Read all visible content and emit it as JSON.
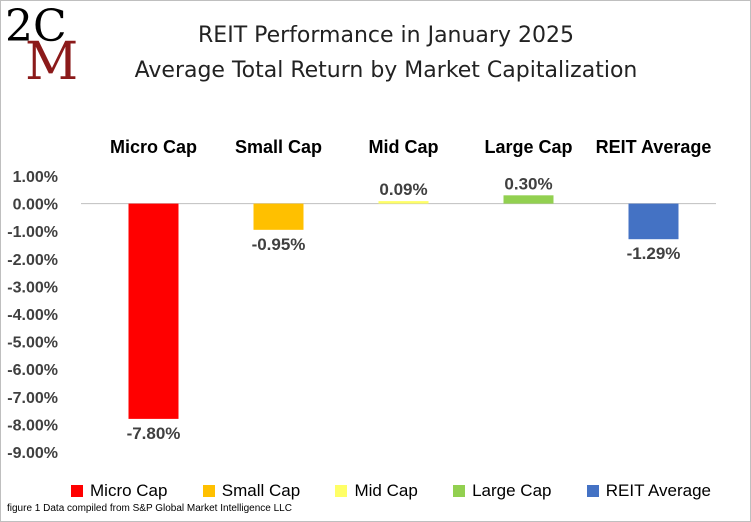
{
  "logo": {
    "text_top": "2C",
    "text_main": "M"
  },
  "chart_data": {
    "type": "bar",
    "title": "REIT Performance in January 2025",
    "subtitle": "Average Total Return by Market Capitalization",
    "categories": [
      "Micro Cap",
      "Small Cap",
      "Mid Cap",
      "Large Cap",
      "REIT Average"
    ],
    "values": [
      -7.8,
      -0.95,
      0.09,
      0.3,
      -1.29
    ],
    "value_labels": [
      "-7.80%",
      "-0.95%",
      "0.09%",
      "0.30%",
      "-1.29%"
    ],
    "colors": [
      "#ff0000",
      "#ffc000",
      "#ffff66",
      "#92d050",
      "#4472c4"
    ],
    "ylim": [
      -9.0,
      1.0
    ],
    "yticks": [
      1,
      0,
      -1,
      -2,
      -3,
      -4,
      -5,
      -6,
      -7,
      -8,
      -9
    ],
    "ytick_labels": [
      "1.00%",
      "0.00%",
      "-1.00%",
      "-2.00%",
      "-3.00%",
      "-4.00%",
      "-5.00%",
      "-6.00%",
      "-7.00%",
      "-8.00%",
      "-9.00%"
    ],
    "category_labels_position": "top",
    "legend": {
      "position": "bottom",
      "entries": [
        "Micro Cap",
        "Small Cap",
        "Mid Cap",
        "Large Cap",
        "REIT Average"
      ]
    },
    "grid": false
  },
  "caption": "figure 1 Data compiled from S&P Global Market Intelligence LLC"
}
